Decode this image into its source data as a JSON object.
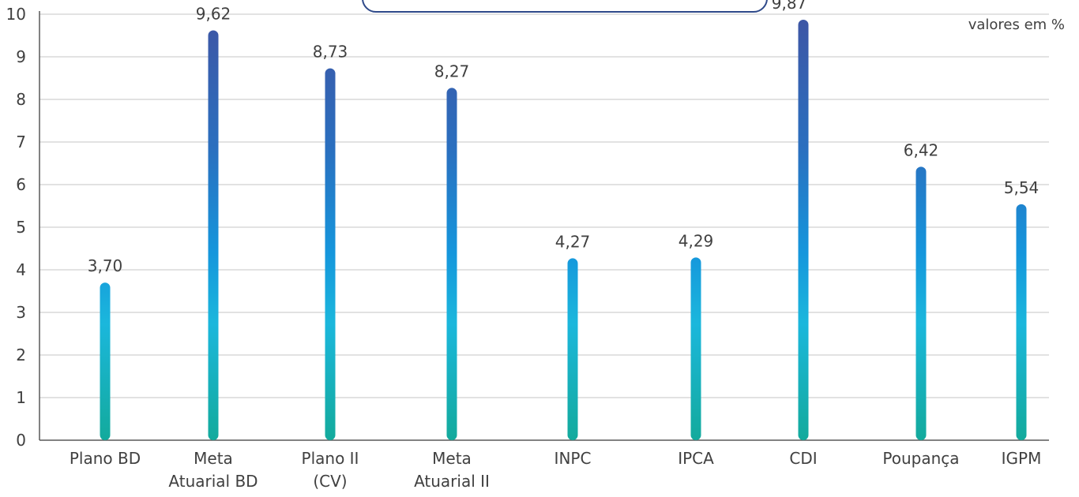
{
  "chart_data": {
    "type": "bar",
    "title": "",
    "xlabel": "",
    "ylabel": "",
    "units_note": "valores em %",
    "categories": [
      [
        "Plano BD"
      ],
      [
        "Meta",
        "Atuarial BD"
      ],
      [
        "Plano II",
        "(CV)"
      ],
      [
        "Meta",
        "Atuarial II"
      ],
      [
        "INPC"
      ],
      [
        "IPCA"
      ],
      [
        "CDI"
      ],
      [
        "Poupança"
      ],
      [
        "IGPM"
      ]
    ],
    "values": [
      3.7,
      9.62,
      8.73,
      8.27,
      4.27,
      4.29,
      9.87,
      6.42,
      5.54
    ],
    "value_labels": [
      "3,70",
      "9,62",
      "8,73",
      "8,27",
      "4,27",
      "4,29",
      "9,87",
      "6,42",
      "5,54"
    ],
    "ylim": [
      0,
      10
    ],
    "yticks": [
      0,
      1,
      2,
      3,
      4,
      5,
      6,
      7,
      8,
      9,
      10
    ],
    "grid": true,
    "colors": {
      "bar_top": "#3d57a6",
      "bar_mid": "#1596dc",
      "bar_bottom": "#13aa9c",
      "grid": "#d9d9d9",
      "axis": "#595959",
      "text": "#404040",
      "frame": "#2f4a8a"
    }
  }
}
